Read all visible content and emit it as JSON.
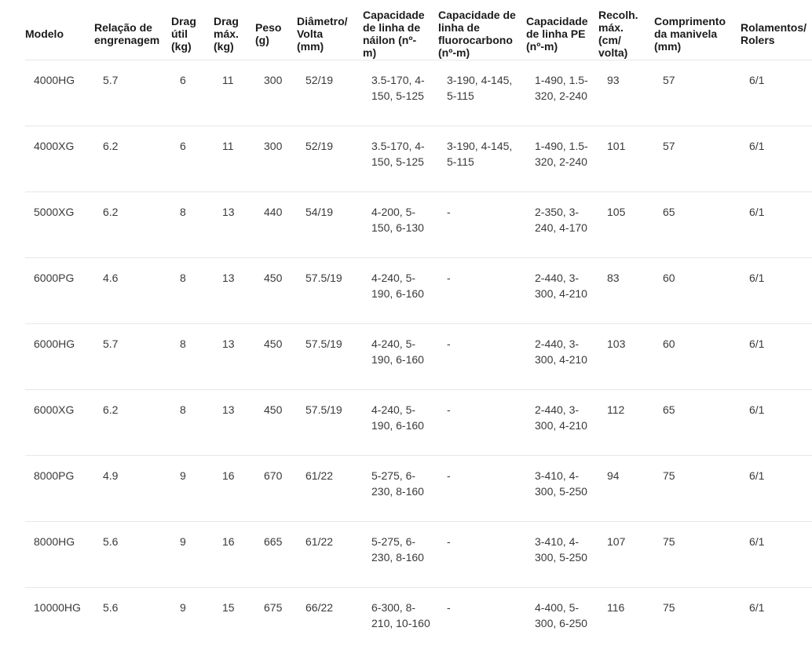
{
  "colors": {
    "header_text": "#1b1b1b",
    "body_text": "#3a3a3a",
    "divider": "#e7e7e7",
    "background": "#ffffff"
  },
  "table": {
    "columns": [
      {
        "id": "modelo",
        "label": "Modelo"
      },
      {
        "id": "relacao-engrenagem",
        "label": "Relação de engrenagem"
      },
      {
        "id": "drag-util",
        "label": "Drag útil (kg)"
      },
      {
        "id": "drag-max",
        "label": "Drag máx. (kg)"
      },
      {
        "id": "peso",
        "label": "Peso (g)"
      },
      {
        "id": "diametro-volta",
        "label": "Diâmetro/Volta (mm)"
      },
      {
        "id": "capacidade-linha-nailon",
        "label": "Capacidade de linha de náilon (nº-m)"
      },
      {
        "id": "capacidade-linha-fluorocarbono",
        "label": "Capacidade de linha de fluorocarbono (nº-m)"
      },
      {
        "id": "capacidade-linha-pe",
        "label": "Capacidade de linha PE (nº-m)"
      },
      {
        "id": "recolhimento-max",
        "label": "Recolh. máx. (cm/volta)"
      },
      {
        "id": "comprimento-manivela",
        "label": "Comprimento da manivela (mm)"
      },
      {
        "id": "rolamentos-rolers",
        "label": "Rolamentos/Rolers"
      }
    ],
    "rows": [
      [
        "4000HG",
        "5.7",
        "6",
        "11",
        "300",
        "52/19",
        "3.5-170, 4-150, 5-125",
        "3-190, 4-145, 5-115",
        "1-490, 1.5-320, 2-240",
        "93",
        "57",
        "6/1"
      ],
      [
        "4000XG",
        "6.2",
        "6",
        "11",
        "300",
        "52/19",
        "3.5-170, 4-150, 5-125",
        "3-190, 4-145, 5-115",
        "1-490, 1.5-320, 2-240",
        "101",
        "57",
        "6/1"
      ],
      [
        "5000XG",
        "6.2",
        "8",
        "13",
        "440",
        "54/19",
        "4-200, 5-150, 6-130",
        "-",
        "2-350, 3-240, 4-170",
        "105",
        "65",
        "6/1"
      ],
      [
        "6000PG",
        "4.6",
        "8",
        "13",
        "450",
        "57.5/19",
        "4-240, 5-190, 6-160",
        "-",
        "2-440, 3-300, 4-210",
        "83",
        "60",
        "6/1"
      ],
      [
        "6000HG",
        "5.7",
        "8",
        "13",
        "450",
        "57.5/19",
        "4-240, 5-190, 6-160",
        "-",
        "2-440, 3-300, 4-210",
        "103",
        "60",
        "6/1"
      ],
      [
        "6000XG",
        "6.2",
        "8",
        "13",
        "450",
        "57.5/19",
        "4-240, 5-190, 6-160",
        "-",
        "2-440, 3-300, 4-210",
        "112",
        "65",
        "6/1"
      ],
      [
        "8000PG",
        "4.9",
        "9",
        "16",
        "670",
        "61/22",
        "5-275, 6-230, 8-160",
        "-",
        "3-410, 4-300, 5-250",
        "94",
        "75",
        "6/1"
      ],
      [
        "8000HG",
        "5.6",
        "9",
        "16",
        "665",
        "61/22",
        "5-275, 6-230, 8-160",
        "-",
        "3-410, 4-300, 5-250",
        "107",
        "75",
        "6/1"
      ],
      [
        "10000HG",
        "5.6",
        "9",
        "15",
        "675",
        "66/22",
        "6-300, 8-210, 10-160",
        "-",
        "4-400, 5-300, 6-250",
        "116",
        "75",
        "6/1"
      ]
    ]
  }
}
